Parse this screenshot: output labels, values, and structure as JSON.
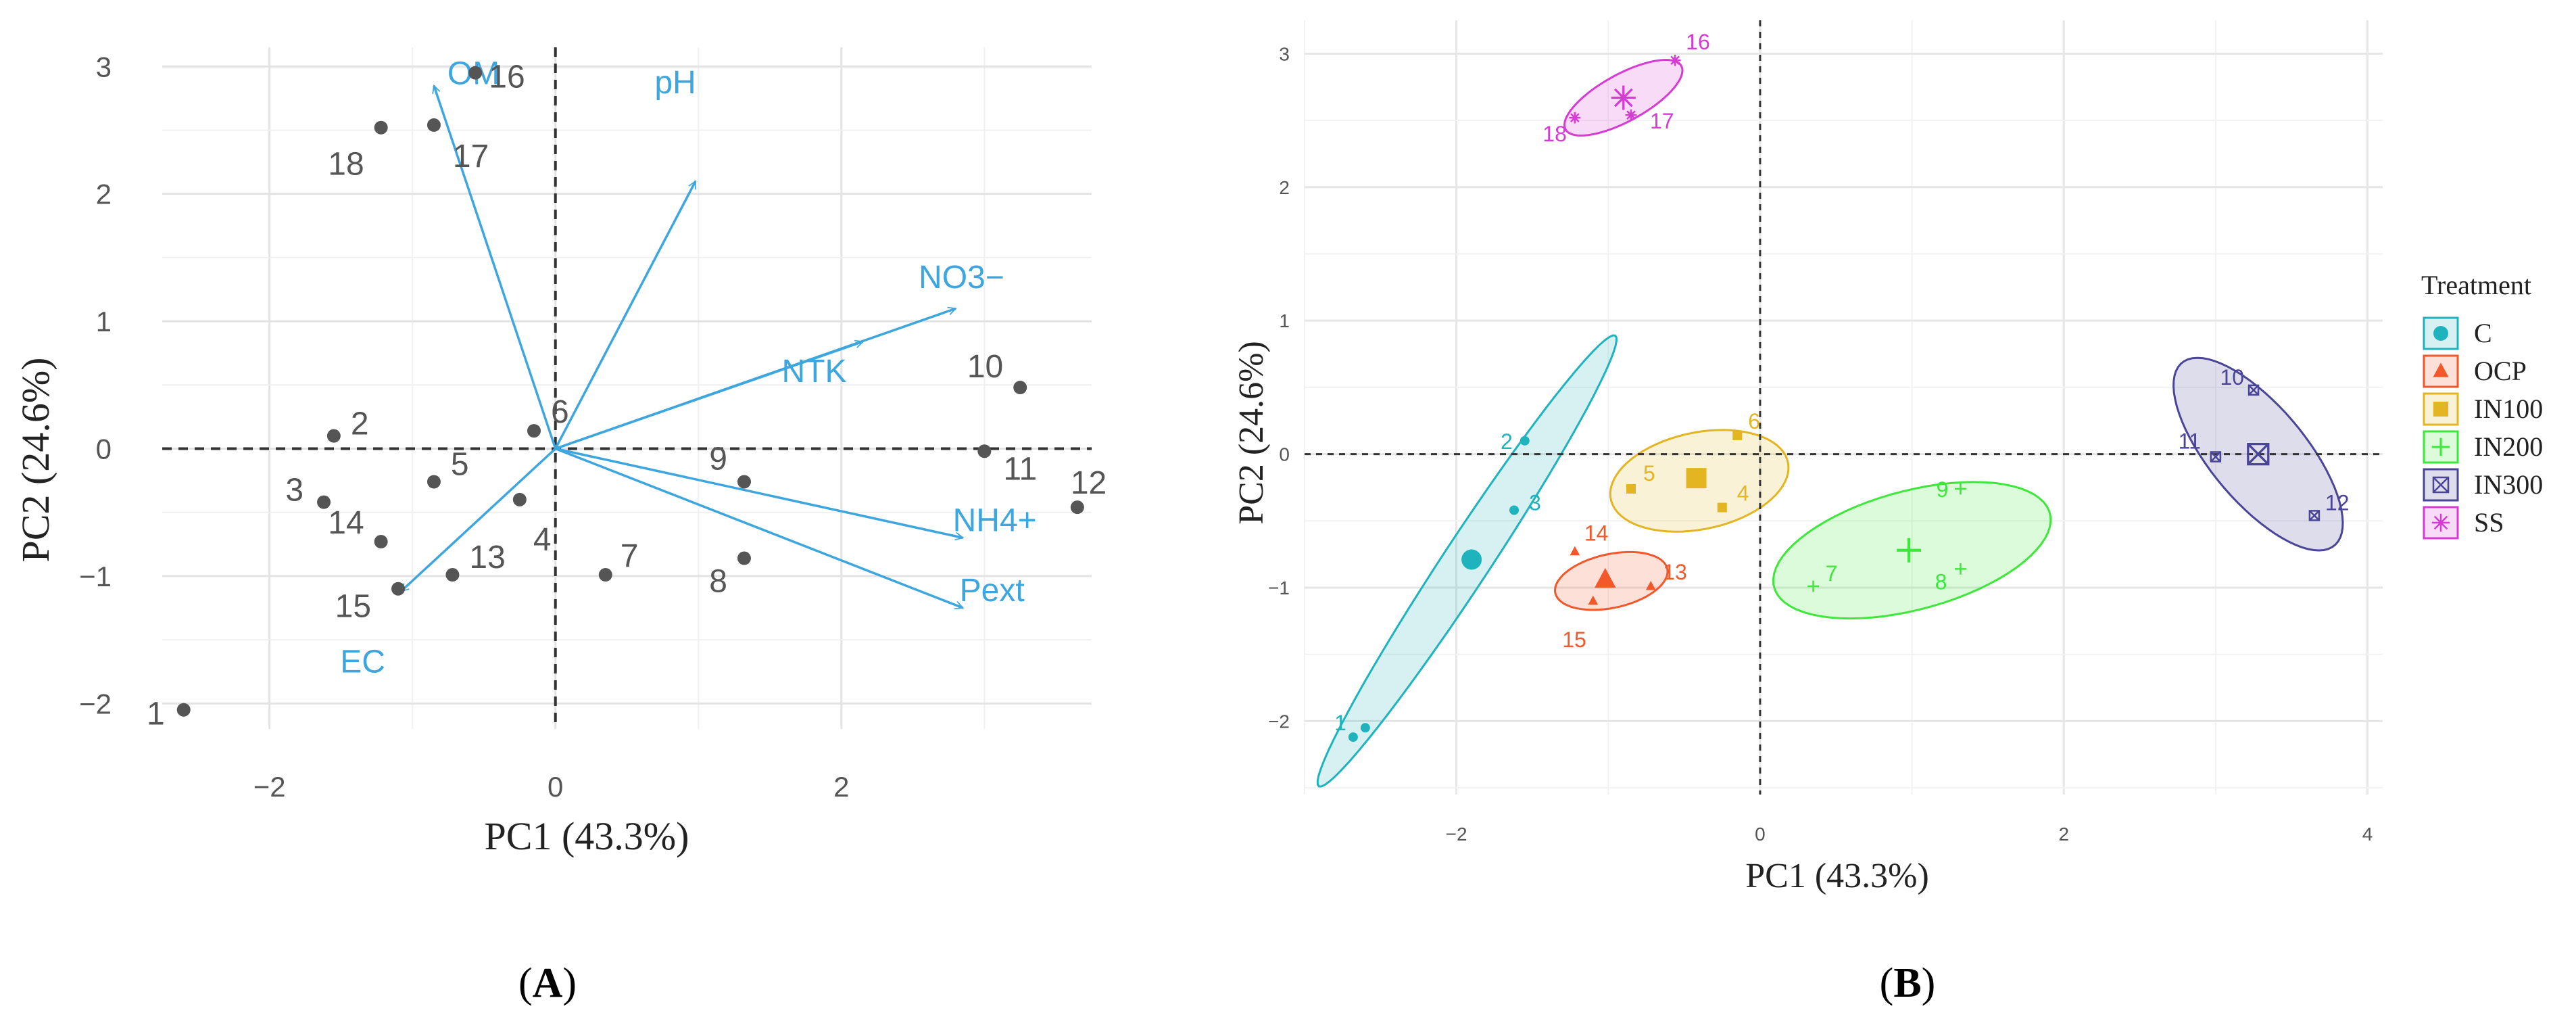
{
  "panels": {
    "a_label_prefix": "(",
    "a_label_letter": "A",
    "a_label_suffix": ")",
    "b_label_prefix": "(",
    "b_label_letter": "B",
    "b_label_suffix": ")"
  },
  "chart_data": [
    {
      "id": "A",
      "type": "scatter",
      "subtype": "biplot",
      "title": "",
      "xlabel": "PC1 (43.3%)",
      "ylabel": "PC2 (24.6%)",
      "xlim": [
        -2.75,
        3.75
      ],
      "ylim": [
        -2.2,
        3.15
      ],
      "xticks": [
        -2,
        0,
        2
      ],
      "yticks": [
        -2,
        -1,
        0,
        1,
        2,
        3
      ],
      "xtick_labels": [
        "−2",
        "0",
        "2"
      ],
      "ytick_labels": [
        "−2",
        "−1",
        "0",
        "1",
        "2",
        "3"
      ],
      "grid": true,
      "point_color": "#555555",
      "arrow_color": "#3ea6de",
      "points": [
        {
          "label": "1",
          "x": -2.6,
          "y": -2.05
        },
        {
          "label": "2",
          "x": -1.55,
          "y": 0.1
        },
        {
          "label": "3",
          "x": -1.62,
          "y": -0.42
        },
        {
          "label": "4",
          "x": -0.25,
          "y": -0.4
        },
        {
          "label": "5",
          "x": -0.85,
          "y": -0.26
        },
        {
          "label": "6",
          "x": -0.15,
          "y": 0.14
        },
        {
          "label": "7",
          "x": 0.35,
          "y": -0.99
        },
        {
          "label": "8",
          "x": 1.32,
          "y": -0.86
        },
        {
          "label": "9",
          "x": 1.32,
          "y": -0.26
        },
        {
          "label": "10",
          "x": 3.25,
          "y": 0.48
        },
        {
          "label": "11",
          "x": 3.0,
          "y": -0.02
        },
        {
          "label": "12",
          "x": 3.65,
          "y": -0.46
        },
        {
          "label": "13",
          "x": -0.72,
          "y": -0.99
        },
        {
          "label": "14",
          "x": -1.22,
          "y": -0.73
        },
        {
          "label": "15",
          "x": -1.1,
          "y": -1.1
        },
        {
          "label": "16",
          "x": -0.56,
          "y": 2.95
        },
        {
          "label": "17",
          "x": -0.85,
          "y": 2.54
        },
        {
          "label": "18",
          "x": -1.22,
          "y": 2.52
        }
      ],
      "loadings": [
        {
          "name": "OM",
          "x": -0.85,
          "y": 2.85
        },
        {
          "name": "pH",
          "x": 0.98,
          "y": 2.1
        },
        {
          "name": "NO3−",
          "x": 2.8,
          "y": 1.1
        },
        {
          "name": "NTK",
          "x": 2.15,
          "y": 0.84
        },
        {
          "name": "NH4+",
          "x": 2.85,
          "y": -0.7
        },
        {
          "name": "Pext",
          "x": 2.85,
          "y": -1.25
        },
        {
          "name": "EC",
          "x": -1.08,
          "y": -1.12
        }
      ]
    },
    {
      "id": "B",
      "type": "scatter",
      "subtype": "pca-groups-ellipses",
      "title": "",
      "xlabel": "PC1 (43.3%)",
      "ylabel": "PC2 (24.6%)",
      "xlim": [
        -3.0,
        4.1
      ],
      "ylim": [
        -2.55,
        3.25
      ],
      "xticks": [
        -2,
        0,
        2,
        4
      ],
      "yticks": [
        -2,
        -1,
        0,
        1,
        2,
        3
      ],
      "xtick_labels": [
        "−2",
        "0",
        "2",
        "4"
      ],
      "ytick_labels": [
        "−2",
        "−1",
        "0",
        "1",
        "2",
        "3"
      ],
      "grid": true,
      "legend": {
        "title": "Treatment",
        "position": "right"
      },
      "groups": [
        {
          "name": "C",
          "color": "#1fb3bd",
          "marker": "circle",
          "centroid": {
            "x": -1.9,
            "y": -0.79
          },
          "ellipse": {
            "cx": -1.93,
            "cy": -0.8,
            "a": 1.95,
            "b": 0.16,
            "angle": 60
          },
          "points": [
            {
              "label": "1",
              "x": -2.68,
              "y": -2.12
            },
            {
              "label": "",
              "x": -2.6,
              "y": -2.05
            },
            {
              "label": "2",
              "x": -1.55,
              "y": 0.1
            },
            {
              "label": "3",
              "x": -1.62,
              "y": -0.42
            }
          ]
        },
        {
          "name": "OCP",
          "color": "#f3582b",
          "marker": "triangle",
          "centroid": {
            "x": -1.02,
            "y": -0.94
          },
          "ellipse": {
            "cx": -0.98,
            "cy": -0.95,
            "a": 0.38,
            "b": 0.2,
            "angle": 15
          },
          "points": [
            {
              "label": "13",
              "x": -0.72,
              "y": -0.99
            },
            {
              "label": "14",
              "x": -1.22,
              "y": -0.73
            },
            {
              "label": "15",
              "x": -1.1,
              "y": -1.1
            }
          ]
        },
        {
          "name": "IN100",
          "color": "#e3b522",
          "marker": "square",
          "centroid": {
            "x": -0.42,
            "y": -0.18
          },
          "ellipse": {
            "cx": -0.4,
            "cy": -0.2,
            "a": 0.6,
            "b": 0.36,
            "angle": 15
          },
          "points": [
            {
              "label": "4",
              "x": -0.25,
              "y": -0.4
            },
            {
              "label": "5",
              "x": -0.85,
              "y": -0.26
            },
            {
              "label": "6",
              "x": -0.15,
              "y": 0.14
            }
          ]
        },
        {
          "name": "IN200",
          "color": "#3de83a",
          "marker": "plus",
          "centroid": {
            "x": 0.98,
            "y": -0.72
          },
          "ellipse": {
            "cx": 1.0,
            "cy": -0.72,
            "a": 0.95,
            "b": 0.44,
            "angle": 18
          },
          "points": [
            {
              "label": "7",
              "x": 0.35,
              "y": -0.99
            },
            {
              "label": "8",
              "x": 1.32,
              "y": -0.86
            },
            {
              "label": "9",
              "x": 1.32,
              "y": -0.26
            }
          ]
        },
        {
          "name": "IN300",
          "color": "#4a4596",
          "marker": "boxed-x",
          "centroid": {
            "x": 3.28,
            "y": 0.0
          },
          "ellipse": {
            "cx": 3.28,
            "cy": 0.0,
            "a": 0.85,
            "b": 0.33,
            "angle": -55
          },
          "points": [
            {
              "label": "10",
              "x": 3.25,
              "y": 0.48
            },
            {
              "label": "11",
              "x": 3.0,
              "y": -0.02
            },
            {
              "label": "12",
              "x": 3.65,
              "y": -0.46
            }
          ]
        },
        {
          "name": "SS",
          "color": "#d63bd3",
          "marker": "star",
          "centroid": {
            "x": -0.9,
            "y": 2.67
          },
          "ellipse": {
            "cx": -0.9,
            "cy": 2.67,
            "a": 0.45,
            "b": 0.17,
            "angle": 33
          },
          "points": [
            {
              "label": "16",
              "x": -0.56,
              "y": 2.95
            },
            {
              "label": "17",
              "x": -0.85,
              "y": 2.54
            },
            {
              "label": "18",
              "x": -1.22,
              "y": 2.52
            }
          ]
        }
      ]
    }
  ]
}
